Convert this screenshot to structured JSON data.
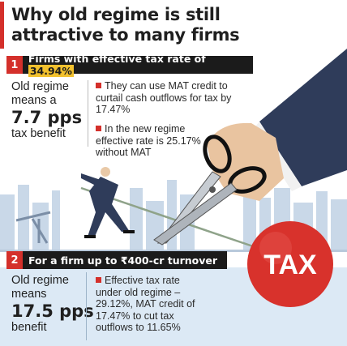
{
  "title": "Why old regime is still attractive to many firms",
  "section1": {
    "number": "1",
    "heading_prefix": "Firms with effective tax rate of ",
    "heading_highlight": "34.94%",
    "lead_line1": "Old regime",
    "lead_line2": "means a",
    "lead_value": "7.7 pps",
    "lead_line3": "tax benefit",
    "bullets": [
      "They can use MAT credit to curtail cash outflows for tax by 17.47%",
      "In the new regime effective rate is 25.17% without MAT"
    ]
  },
  "section2": {
    "number": "2",
    "heading": "For a firm up to ₹400-cr turnover",
    "lead_line1": "Old regime",
    "lead_line2": "means",
    "lead_value": "17.5 pps",
    "lead_line3": "benefit",
    "bullet": "Effective tax rate under old regime – 29.12%, MAT credit of 17.47% to cut tax outflows to 11.65%"
  },
  "illustration": {
    "ball_label": "TAX",
    "colors": {
      "accent_red": "#d4302b",
      "highlight_yellow": "#f2c12e",
      "suit_blue": "#2f3c5a",
      "skyline": "#c9d8e8"
    }
  }
}
